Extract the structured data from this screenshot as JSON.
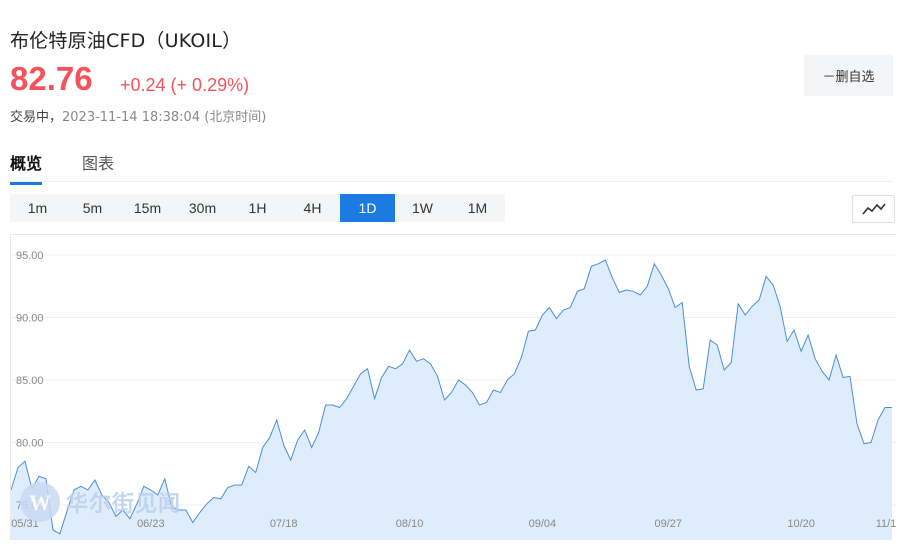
{
  "header": {
    "title": "布伦特原油CFD（UKOIL）",
    "price": "82.76",
    "change": "+0.24 (+ 0.29%)",
    "status_label": "交易中，",
    "timestamp": "2023-11-14 18:38:04 (北京时间)"
  },
  "watchlist": {
    "remove_label": "－删自选"
  },
  "tabs": [
    {
      "label": "概览",
      "active": true
    },
    {
      "label": "图表",
      "active": false
    }
  ],
  "periods": [
    {
      "label": "1m",
      "active": false
    },
    {
      "label": "5m",
      "active": false
    },
    {
      "label": "15m",
      "active": false
    },
    {
      "label": "30m",
      "active": false
    },
    {
      "label": "1H",
      "active": false
    },
    {
      "label": "4H",
      "active": false
    },
    {
      "label": "1D",
      "active": true
    },
    {
      "label": "1W",
      "active": false
    },
    {
      "label": "1M",
      "active": false
    }
  ],
  "colors": {
    "price_up": "#f5525c",
    "accent": "#1a7be0",
    "line": "#4a90d9",
    "fill": "#dcebfb"
  },
  "icons": {
    "chart_type": "line-chart-icon",
    "watermark_logo": "wallstreetcn-logo"
  },
  "watermark": {
    "text": "华尔街见闻"
  },
  "chart_data": {
    "type": "area",
    "title": "",
    "xlabel": "",
    "ylabel": "",
    "ylim": [
      72.2,
      96.6
    ],
    "yticks": [
      "75.00",
      "80.00",
      "85.00",
      "90.00",
      "95.00"
    ],
    "xtick_labels": [
      "05/31",
      "06/23",
      "07/18",
      "08/10",
      "09/04",
      "09/27",
      "10/20",
      "11/1"
    ],
    "grid": true,
    "series": [
      {
        "values": [
          76.2,
          78.0,
          78.5,
          76.3,
          77.3,
          77.1,
          73.0,
          72.7,
          74.5,
          76.2,
          76.5,
          76.2,
          77.0,
          75.8,
          75.2,
          74.1,
          74.6,
          73.9,
          75.1,
          76.5,
          76.2,
          75.8,
          77.1,
          74.8,
          74.6,
          74.6,
          73.6,
          74.4,
          75.1,
          75.6,
          75.5,
          76.4,
          76.6,
          76.6,
          78.1,
          77.6,
          79.6,
          80.4,
          81.8,
          79.8,
          78.6,
          80.2,
          81.0,
          79.6,
          80.8,
          83.0,
          83.0,
          82.8,
          83.5,
          84.5,
          85.5,
          85.9,
          83.5,
          85.2,
          86.1,
          85.9,
          86.3,
          87.4,
          86.5,
          86.7,
          86.3,
          85.3,
          83.4,
          84.0,
          85.0,
          84.6,
          84.0,
          83.0,
          83.2,
          84.2,
          84.0,
          85.0,
          85.5,
          86.8,
          88.9,
          89.0,
          90.2,
          90.8,
          89.9,
          90.6,
          90.8,
          92.1,
          92.3,
          94.1,
          94.3,
          94.6,
          93.2,
          92.0,
          92.2,
          92.1,
          91.8,
          92.5,
          94.3,
          93.4,
          92.3,
          90.8,
          91.2,
          86.1,
          84.2,
          84.3,
          88.2,
          87.8,
          85.8,
          86.4,
          91.1,
          90.2,
          90.9,
          91.4,
          93.3,
          92.6,
          90.9,
          88.1,
          89.0,
          87.3,
          88.6,
          86.7,
          85.7,
          85.0,
          87.0,
          85.2,
          85.3,
          81.5,
          79.9,
          80.0,
          81.8,
          82.8,
          82.8
        ]
      }
    ]
  }
}
